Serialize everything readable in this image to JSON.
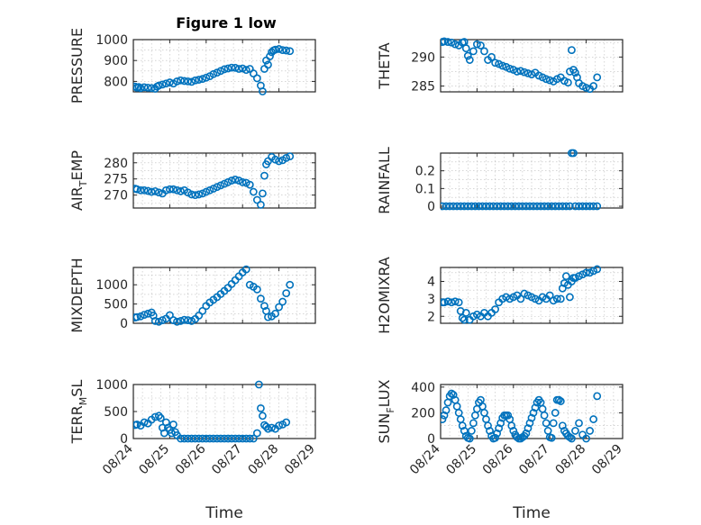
{
  "figure_title": "Figure 1 low",
  "colors": {
    "marker": "#0072BD",
    "axis": "#262626",
    "grid": "#bdbdbd"
  },
  "chart_data": [
    {
      "type": "scatter",
      "key": "pressure",
      "title": "Figure 1 low",
      "ylabel": {
        "main": "PRESSURE",
        "sub": "",
        "tail": ""
      },
      "xlabel": "",
      "ylim": [
        750,
        1000
      ],
      "yticks": [
        800,
        900,
        1000
      ],
      "xlim": [
        0,
        5
      ],
      "xticklabels": [],
      "series": [
        {
          "x": [
            0.05,
            0.1,
            0.15,
            0.2,
            0.3,
            0.4,
            0.5,
            0.6,
            0.65,
            0.7,
            0.8,
            0.9,
            1.0,
            1.1,
            1.2,
            1.3,
            1.4,
            1.5,
            1.6,
            1.7,
            1.8,
            1.9,
            2.0,
            2.1,
            2.2,
            2.3,
            2.4,
            2.5,
            2.6,
            2.7,
            2.8,
            2.9,
            3.0,
            3.1,
            3.2,
            3.3,
            3.4,
            3.5,
            3.55,
            3.6,
            3.65,
            3.7,
            3.75,
            3.8,
            3.85,
            3.9,
            4.0,
            4.1,
            4.2,
            4.3
          ],
          "y": [
            775,
            770,
            773,
            768,
            772,
            770,
            768,
            765,
            775,
            780,
            785,
            790,
            795,
            790,
            800,
            805,
            802,
            800,
            798,
            805,
            808,
            812,
            818,
            825,
            835,
            842,
            850,
            858,
            862,
            866,
            865,
            860,
            862,
            855,
            860,
            838,
            815,
            780,
            752,
            860,
            900,
            880,
            920,
            940,
            948,
            952,
            955,
            950,
            948,
            945
          ]
        }
      ]
    },
    {
      "type": "scatter",
      "key": "theta",
      "ylabel": {
        "main": "THETA",
        "sub": "",
        "tail": ""
      },
      "xlabel": "",
      "ylim": [
        284,
        293
      ],
      "yticks": [
        285,
        290
      ],
      "xlim": [
        0,
        5
      ],
      "xticklabels": [],
      "series": [
        {
          "x": [
            0.05,
            0.1,
            0.2,
            0.3,
            0.4,
            0.5,
            0.6,
            0.65,
            0.7,
            0.75,
            0.8,
            0.9,
            1.0,
            1.1,
            1.2,
            1.3,
            1.4,
            1.5,
            1.6,
            1.7,
            1.8,
            1.9,
            2.0,
            2.1,
            2.2,
            2.3,
            2.4,
            2.5,
            2.6,
            2.7,
            2.8,
            2.9,
            3.0,
            3.1,
            3.2,
            3.3,
            3.4,
            3.5,
            3.55,
            3.6,
            3.65,
            3.7,
            3.75,
            3.8,
            3.9,
            4.0,
            4.1,
            4.2,
            4.3
          ],
          "y": [
            292.6,
            292.7,
            292.6,
            292.5,
            292.2,
            292.0,
            292.5,
            292.6,
            291.5,
            290.2,
            289.5,
            291.0,
            292.2,
            292.0,
            291.0,
            289.5,
            290.0,
            289.0,
            288.8,
            288.5,
            288.3,
            288.0,
            287.8,
            287.5,
            287.6,
            287.4,
            287.2,
            287.0,
            287.3,
            286.8,
            286.5,
            286.2,
            286.0,
            285.8,
            286.2,
            286.5,
            285.9,
            285.6,
            287.5,
            291.2,
            287.8,
            287.3,
            286.5,
            285.5,
            285.0,
            284.7,
            284.5,
            285.0,
            286.5
          ]
        }
      ]
    },
    {
      "type": "scatter",
      "key": "air_temp",
      "ylabel": {
        "main": "AIR",
        "sub": "T",
        "tail": "EMP"
      },
      "xlabel": "",
      "ylim": [
        266,
        283
      ],
      "yticks": [
        270,
        275,
        280
      ],
      "xlim": [
        0,
        5
      ],
      "xticklabels": [],
      "series": [
        {
          "x": [
            0.05,
            0.1,
            0.2,
            0.3,
            0.4,
            0.5,
            0.6,
            0.7,
            0.8,
            0.9,
            1.0,
            1.1,
            1.2,
            1.3,
            1.4,
            1.5,
            1.6,
            1.7,
            1.8,
            1.9,
            2.0,
            2.1,
            2.2,
            2.3,
            2.4,
            2.5,
            2.6,
            2.7,
            2.8,
            2.9,
            3.0,
            3.1,
            3.2,
            3.3,
            3.4,
            3.5,
            3.55,
            3.6,
            3.65,
            3.7,
            3.8,
            3.9,
            4.0,
            4.1,
            4.2,
            4.3
          ],
          "y": [
            272.0,
            271.8,
            271.5,
            271.5,
            271.3,
            271.0,
            271.2,
            270.8,
            270.5,
            271.5,
            271.8,
            271.8,
            271.5,
            271.2,
            271.5,
            270.8,
            270.2,
            270.0,
            270.2,
            270.5,
            271.0,
            271.5,
            272.0,
            272.5,
            273.0,
            273.5,
            274.0,
            274.5,
            274.8,
            274.5,
            274.0,
            273.8,
            273.2,
            271.0,
            268.5,
            267.0,
            270.5,
            276.0,
            279.5,
            280.5,
            281.8,
            281.0,
            280.5,
            280.8,
            281.5,
            282.0
          ]
        }
      ]
    },
    {
      "type": "scatter",
      "key": "rainfall",
      "ylabel": {
        "main": "RAINFALL",
        "sub": "",
        "tail": ""
      },
      "xlabel": "",
      "ylim": [
        -0.01,
        0.3
      ],
      "yticks": [
        0,
        0.1,
        0.2
      ],
      "yticklabels": [
        "0",
        "0.1",
        "0.2"
      ],
      "xlim": [
        0,
        5
      ],
      "xticklabels": [],
      "series": [
        {
          "x": [
            0.05,
            0.15,
            0.25,
            0.35,
            0.45,
            0.55,
            0.65,
            0.75,
            0.85,
            0.95,
            1.05,
            1.15,
            1.25,
            1.35,
            1.45,
            1.55,
            1.65,
            1.75,
            1.85,
            1.95,
            2.05,
            2.15,
            2.25,
            2.35,
            2.45,
            2.55,
            2.65,
            2.75,
            2.85,
            2.95,
            3.05,
            3.15,
            3.25,
            3.35,
            3.45,
            3.55,
            3.6,
            3.65,
            3.7,
            3.8,
            3.9,
            4.0,
            4.1,
            4.2,
            4.3
          ],
          "y": [
            0,
            0,
            0,
            0,
            0,
            0,
            0,
            0,
            0,
            0,
            0,
            0,
            0,
            0,
            0,
            0,
            0,
            0,
            0,
            0,
            0,
            0,
            0,
            0,
            0,
            0,
            0,
            0,
            0,
            0,
            0,
            0,
            0,
            0,
            0,
            0,
            0.3,
            0.3,
            0,
            0,
            0,
            0,
            0,
            0,
            0
          ]
        }
      ]
    },
    {
      "type": "scatter",
      "key": "mixdepth",
      "ylabel": {
        "main": "MIXDEPTH",
        "sub": "",
        "tail": ""
      },
      "xlabel": "",
      "ylim": [
        0,
        1450
      ],
      "yticks": [
        0,
        500,
        1000
      ],
      "xlim": [
        0,
        5
      ],
      "xticklabels": [],
      "series": [
        {
          "x": [
            0.05,
            0.1,
            0.2,
            0.3,
            0.4,
            0.5,
            0.55,
            0.6,
            0.7,
            0.8,
            0.9,
            1.0,
            1.1,
            1.2,
            1.3,
            1.4,
            1.5,
            1.6,
            1.7,
            1.8,
            1.9,
            2.0,
            2.1,
            2.2,
            2.3,
            2.4,
            2.5,
            2.6,
            2.7,
            2.8,
            2.9,
            3.0,
            3.1,
            3.2,
            3.3,
            3.4,
            3.5,
            3.6,
            3.65,
            3.7,
            3.8,
            3.9,
            4.0,
            4.1,
            4.2,
            4.3
          ],
          "y": [
            150,
            160,
            180,
            220,
            250,
            280,
            200,
            60,
            40,
            80,
            120,
            210,
            80,
            40,
            60,
            90,
            80,
            60,
            110,
            200,
            320,
            450,
            540,
            610,
            680,
            760,
            840,
            920,
            1020,
            1120,
            1220,
            1320,
            1400,
            1000,
            950,
            880,
            640,
            450,
            320,
            160,
            180,
            250,
            420,
            560,
            780,
            1000
          ]
        }
      ]
    },
    {
      "type": "scatter",
      "key": "h2omixra",
      "ylabel": {
        "main": "H2OMIXRA",
        "sub": "",
        "tail": ""
      },
      "xlabel": "",
      "ylim": [
        1.6,
        4.8
      ],
      "yticks": [
        2,
        3,
        4
      ],
      "xlim": [
        0,
        5
      ],
      "xticklabels": [],
      "series": [
        {
          "x": [
            0.05,
            0.1,
            0.2,
            0.3,
            0.4,
            0.5,
            0.55,
            0.6,
            0.65,
            0.7,
            0.8,
            0.9,
            1.0,
            1.1,
            1.2,
            1.3,
            1.4,
            1.5,
            1.6,
            1.7,
            1.8,
            1.9,
            2.0,
            2.1,
            2.2,
            2.3,
            2.4,
            2.5,
            2.6,
            2.7,
            2.8,
            2.9,
            3.0,
            3.1,
            3.2,
            3.3,
            3.35,
            3.4,
            3.45,
            3.5,
            3.55,
            3.6,
            3.65,
            3.7,
            3.8,
            3.9,
            4.0,
            4.1,
            4.2,
            4.3
          ],
          "y": [
            2.8,
            2.8,
            2.85,
            2.8,
            2.85,
            2.8,
            2.3,
            1.9,
            1.8,
            2.2,
            1.8,
            2.0,
            2.1,
            2.0,
            2.2,
            2.0,
            2.2,
            2.4,
            2.8,
            3.0,
            3.1,
            3.0,
            3.1,
            3.2,
            3.0,
            3.3,
            3.2,
            3.1,
            3.0,
            2.9,
            3.1,
            3.0,
            3.2,
            2.9,
            3.0,
            3.0,
            3.6,
            3.9,
            4.3,
            3.8,
            3.1,
            4.0,
            4.2,
            4.2,
            4.3,
            4.4,
            4.5,
            4.5,
            4.6,
            4.7
          ]
        }
      ]
    },
    {
      "type": "scatter",
      "key": "terr_msl",
      "ylabel": {
        "main": "TERR",
        "sub": "M",
        "tail": "SL"
      },
      "xlabel": "Time",
      "ylim": [
        0,
        1000
      ],
      "yticks": [
        0,
        500,
        1000
      ],
      "xlim": [
        0,
        5
      ],
      "xticklabels": [
        "08/24",
        "08/25",
        "08/26",
        "08/27",
        "08/28",
        "08/29"
      ],
      "series": [
        {
          "x": [
            0.05,
            0.1,
            0.2,
            0.3,
            0.4,
            0.5,
            0.6,
            0.7,
            0.75,
            0.8,
            0.85,
            0.9,
            0.95,
            1.0,
            1.05,
            1.1,
            1.15,
            1.2,
            1.3,
            1.4,
            1.5,
            1.6,
            1.7,
            1.8,
            1.9,
            2.0,
            2.1,
            2.2,
            2.3,
            2.4,
            2.5,
            2.6,
            2.7,
            2.8,
            2.9,
            3.0,
            3.1,
            3.2,
            3.3,
            3.4,
            3.45,
            3.5,
            3.55,
            3.6,
            3.65,
            3.7,
            3.8,
            3.9,
            4.0,
            4.1,
            4.2
          ],
          "y": [
            250,
            260,
            240,
            300,
            280,
            350,
            400,
            420,
            380,
            200,
            100,
            300,
            200,
            160,
            100,
            260,
            120,
            60,
            0,
            0,
            0,
            0,
            0,
            0,
            0,
            0,
            0,
            0,
            0,
            0,
            0,
            0,
            0,
            0,
            0,
            0,
            0,
            0,
            0,
            100,
            1000,
            560,
            420,
            250,
            220,
            180,
            200,
            180,
            240,
            260,
            300
          ]
        }
      ]
    },
    {
      "type": "scatter",
      "key": "sun_flux",
      "ylabel": {
        "main": "SUN",
        "sub": "F",
        "tail": "LUX"
      },
      "xlabel": "Time",
      "ylim": [
        0,
        420
      ],
      "yticks": [
        0,
        200,
        400
      ],
      "xlim": [
        0,
        5
      ],
      "xticklabels": [
        "08/24",
        "08/25",
        "08/26",
        "08/27",
        "08/28",
        "08/29"
      ],
      "series": [
        {
          "x": [
            0.05,
            0.1,
            0.15,
            0.2,
            0.25,
            0.3,
            0.35,
            0.4,
            0.45,
            0.5,
            0.55,
            0.6,
            0.65,
            0.7,
            0.75,
            0.8,
            0.85,
            0.9,
            0.95,
            1.0,
            1.05,
            1.1,
            1.15,
            1.2,
            1.25,
            1.3,
            1.35,
            1.4,
            1.45,
            1.5,
            1.55,
            1.6,
            1.65,
            1.7,
            1.75,
            1.8,
            1.85,
            1.9,
            1.95,
            2.0,
            2.05,
            2.1,
            2.15,
            2.2,
            2.25,
            2.3,
            2.35,
            2.4,
            2.45,
            2.5,
            2.55,
            2.6,
            2.65,
            2.7,
            2.75,
            2.8,
            2.85,
            2.9,
            2.95,
            3.0,
            3.05,
            3.1,
            3.15,
            3.2,
            3.25,
            3.3,
            3.35,
            3.4,
            3.45,
            3.5,
            3.55,
            3.6,
            3.7,
            3.8,
            3.9,
            4.0,
            4.1,
            4.2,
            4.3
          ],
          "y": [
            150,
            180,
            220,
            280,
            330,
            350,
            340,
            300,
            250,
            200,
            150,
            100,
            60,
            20,
            5,
            0,
            60,
            120,
            180,
            230,
            280,
            300,
            250,
            200,
            150,
            100,
            60,
            20,
            0,
            5,
            40,
            80,
            120,
            160,
            180,
            180,
            180,
            150,
            100,
            60,
            30,
            10,
            0,
            0,
            10,
            20,
            40,
            80,
            120,
            160,
            200,
            240,
            280,
            300,
            280,
            230,
            180,
            120,
            60,
            10,
            5,
            120,
            200,
            300,
            300,
            290,
            100,
            60,
            40,
            20,
            10,
            0,
            60,
            120,
            30,
            0,
            60,
            150,
            330
          ]
        }
      ]
    }
  ]
}
